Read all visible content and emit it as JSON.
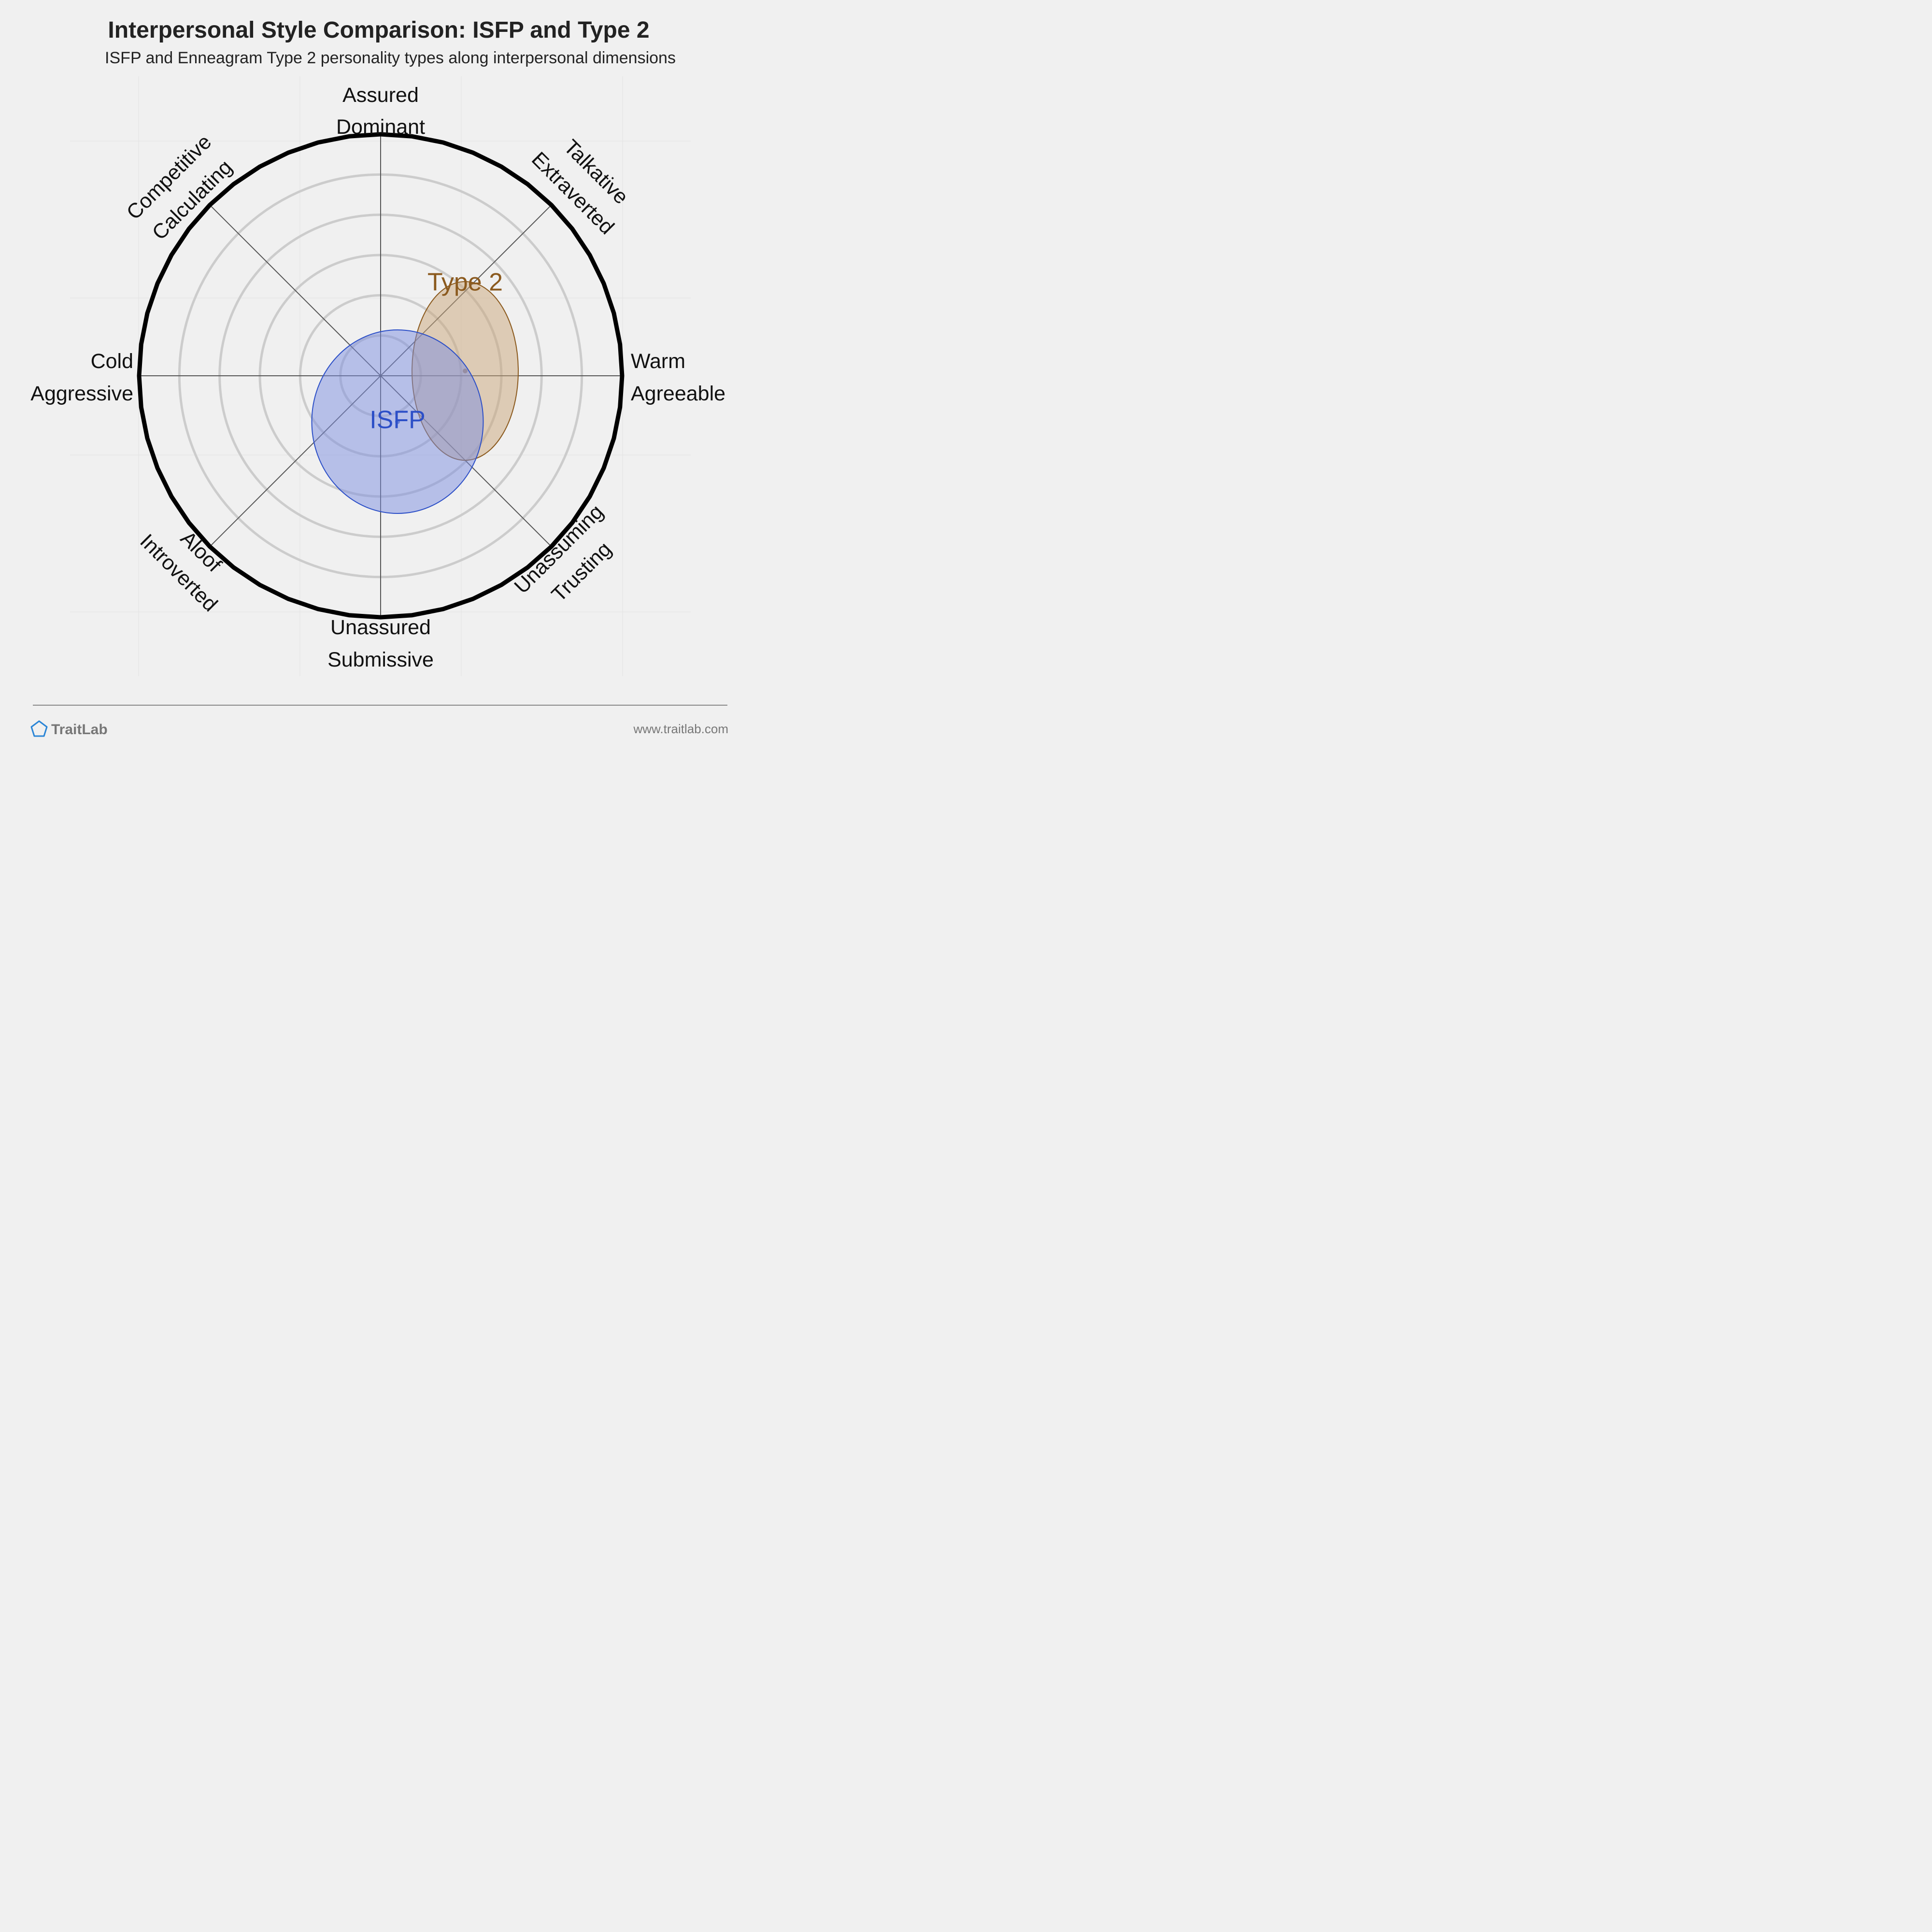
{
  "header": {
    "title": "Interpersonal Style Comparison: ISFP and Type 2",
    "subtitle": "ISFP and Enneagram Type 2 personality types along interpersonal dimensions"
  },
  "chart_data": {
    "type": "scatter",
    "x_range": [
      -1,
      1
    ],
    "y_range": [
      -1,
      1
    ],
    "grid": true,
    "axes": {
      "top": [
        "Assured",
        "Dominant"
      ],
      "bottom": [
        "Unassured",
        "Submissive"
      ],
      "left": [
        "Cold",
        "Aggressive"
      ],
      "right": [
        "Warm",
        "Agreeable"
      ],
      "top_right": [
        "Talkative",
        "Extraverted"
      ],
      "top_left": [
        "Competitive",
        "Calculating"
      ],
      "bottom_left": [
        "Aloof",
        "Introverted"
      ],
      "bottom_right": [
        "Unassuming",
        "Trusting"
      ]
    },
    "series": [
      {
        "name": "Type 2",
        "x": 0.35,
        "y": 0.02,
        "rx": 0.44,
        "ry": 0.74,
        "ey": 0.38,
        "color": "#8b5a1e",
        "fill": "#c9a57a"
      },
      {
        "name": "ISFP",
        "x": 0.07,
        "y": -0.19,
        "rx": 0.71,
        "ry": 0.76,
        "ey": -0.19,
        "color": "#2c4fc7",
        "fill": "#7b8ee0"
      }
    ]
  },
  "footer": {
    "brand": "TraitLab",
    "url": "www.traitlab.com"
  }
}
